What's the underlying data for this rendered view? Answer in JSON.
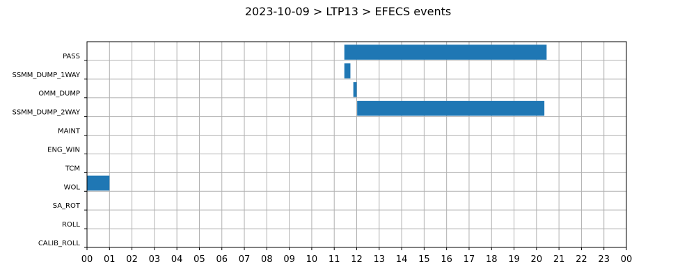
{
  "chart_data": {
    "type": "gantt",
    "title": "2023-10-09 > LTP13 > EFECS events",
    "xlabel": "",
    "ylabel": "",
    "x_unit": "hour of day",
    "xlim": [
      0,
      24
    ],
    "x_ticks": [
      "00",
      "01",
      "02",
      "03",
      "04",
      "05",
      "06",
      "07",
      "08",
      "09",
      "10",
      "11",
      "12",
      "13",
      "14",
      "15",
      "16",
      "17",
      "18",
      "19",
      "20",
      "21",
      "22",
      "23",
      "00"
    ],
    "categories": [
      "PASS",
      "SSMM_DUMP_1WAY",
      "OMM_DUMP",
      "SSMM_DUMP_2WAY",
      "MAINT",
      "ENG_WIN",
      "TCM",
      "WOL",
      "SA_ROT",
      "ROLL",
      "CALIB_ROLL"
    ],
    "bars": [
      {
        "category": "PASS",
        "start": 11.45,
        "end": 20.45
      },
      {
        "category": "SSMM_DUMP_1WAY",
        "start": 11.45,
        "end": 11.72
      },
      {
        "category": "OMM_DUMP",
        "start": 11.85,
        "end": 12.0
      },
      {
        "category": "SSMM_DUMP_2WAY",
        "start": 12.02,
        "end": 20.35
      },
      {
        "category": "WOL",
        "start": 0.0,
        "end": 1.0
      }
    ],
    "grid": true,
    "bar_color": "#1f77b4"
  }
}
